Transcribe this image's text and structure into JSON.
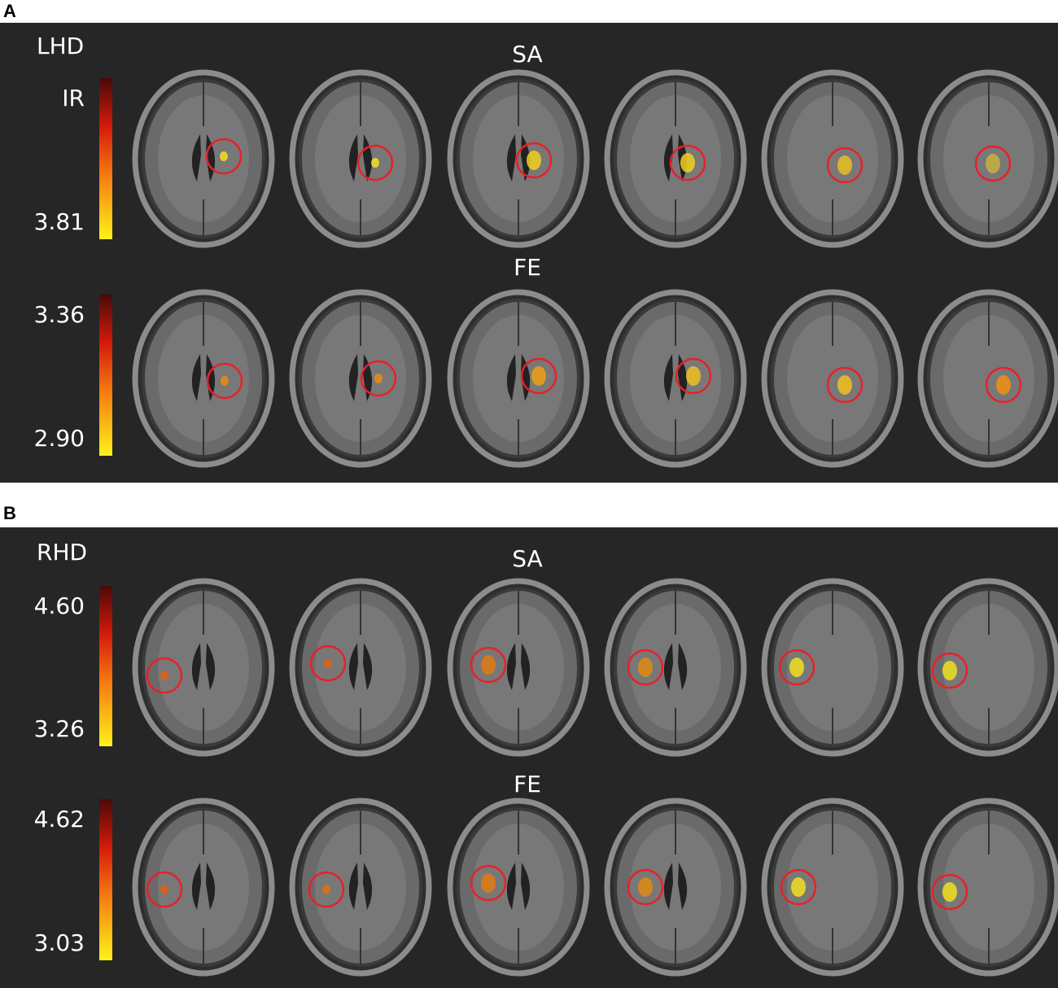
{
  "panels": [
    {
      "label": "A",
      "group": "LHD",
      "rows": [
        {
          "title": "SA",
          "colorbar": {
            "top": "IR",
            "bottom": "3.81"
          }
        },
        {
          "title": "FE",
          "colorbar": {
            "top": "3.36",
            "bottom": "2.90"
          }
        }
      ]
    },
    {
      "label": "B",
      "group": "RHD",
      "rows": [
        {
          "title": "SA",
          "colorbar": {
            "top": "4.60",
            "bottom": "3.26"
          }
        },
        {
          "title": "FE",
          "colorbar": {
            "top": "4.62",
            "bottom": "3.03"
          }
        }
      ]
    }
  ]
}
